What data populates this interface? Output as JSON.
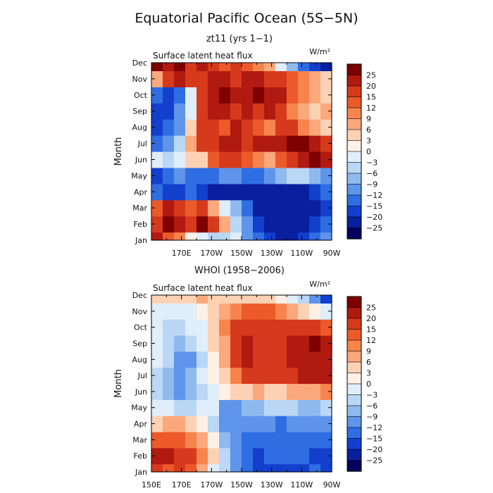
{
  "title": "Equatorial Pacific Ocean (5S−5N)",
  "chart_data": [
    {
      "type": "heatmap",
      "subtitle": "zt11 (yrs 1−1)",
      "panel_label": "Surface latent heat flux",
      "units": "W/m²",
      "ylabel": "Month",
      "xlabel": "",
      "x_ticks": [
        "170E",
        "170W",
        "150W",
        "130W",
        "110W",
        "90W"
      ],
      "y_ticks": [
        "Jan",
        "Feb",
        "Mar",
        "Apr",
        "May",
        "Jun",
        "Jul",
        "Aug",
        "Sep",
        "Oct",
        "Nov",
        "Dec"
      ],
      "x_range_lon": [
        150,
        270
      ],
      "colorbar_levels": [
        25,
        20,
        15,
        12,
        9,
        6,
        3,
        0,
        -3,
        -6,
        -9,
        -12,
        -15,
        -20,
        -25
      ],
      "grid": false,
      "values_rows_jan_to_dec_cols_150E_to_90W": [
        [
          20,
          12,
          10,
          2,
          -3,
          -6,
          -6,
          -3,
          -12,
          -15,
          -20,
          -25,
          -25,
          -20,
          -15,
          -12
        ],
        [
          15,
          25,
          20,
          15,
          25,
          15,
          6,
          -6,
          -12,
          -20,
          -25,
          -25,
          -25,
          -25,
          -20,
          -15
        ],
        [
          12,
          20,
          15,
          12,
          15,
          6,
          -3,
          -9,
          -15,
          -25,
          -25,
          -25,
          -25,
          -25,
          -25,
          -20
        ],
        [
          -15,
          -20,
          -20,
          -15,
          -20,
          -25,
          -25,
          -25,
          -25,
          -25,
          -25,
          -25,
          -25,
          -25,
          -20,
          -15
        ],
        [
          -20,
          -15,
          -12,
          -15,
          -15,
          -15,
          -12,
          -12,
          -15,
          -15,
          -12,
          -9,
          -6,
          -6,
          -9,
          -12
        ],
        [
          -3,
          -6,
          -3,
          3,
          3,
          12,
          15,
          15,
          12,
          9,
          6,
          12,
          15,
          20,
          25,
          20
        ],
        [
          -15,
          -12,
          -6,
          6,
          15,
          15,
          20,
          20,
          15,
          20,
          20,
          20,
          25,
          25,
          20,
          15
        ],
        [
          -20,
          -15,
          -12,
          3,
          15,
          15,
          12,
          20,
          15,
          12,
          9,
          15,
          15,
          9,
          6,
          3
        ],
        [
          -20,
          -20,
          -12,
          -3,
          15,
          20,
          20,
          15,
          20,
          15,
          20,
          15,
          9,
          6,
          3,
          6
        ],
        [
          -15,
          -20,
          -15,
          -3,
          15,
          20,
          25,
          20,
          20,
          25,
          20,
          20,
          12,
          9,
          6,
          3
        ],
        [
          6,
          15,
          20,
          15,
          15,
          20,
          20,
          15,
          20,
          20,
          15,
          15,
          12,
          9,
          6,
          3
        ],
        [
          25,
          20,
          25,
          15,
          20,
          15,
          12,
          15,
          12,
          9,
          6,
          -3,
          -9,
          -15,
          -20,
          -25
        ]
      ]
    },
    {
      "type": "heatmap",
      "subtitle": "WHOI (1958−2006)",
      "panel_label": "Surface latent heat flux",
      "units": "W/m²",
      "ylabel": "Month",
      "xlabel": "",
      "x_ticks": [
        "150E",
        "170E",
        "170W",
        "150W",
        "130W",
        "110W",
        "90W"
      ],
      "y_ticks": [
        "Jan",
        "Feb",
        "Mar",
        "Apr",
        "May",
        "Jun",
        "Jul",
        "Aug",
        "Sep",
        "Oct",
        "Nov",
        "Dec"
      ],
      "x_range_lon": [
        150,
        270
      ],
      "colorbar_levels": [
        25,
        20,
        15,
        12,
        9,
        6,
        3,
        0,
        -3,
        -6,
        -9,
        -12,
        -15,
        -20,
        -25
      ],
      "grid": false,
      "values_rows_jan_to_dec_cols_150E_to_90W": [
        [
          15,
          12,
          15,
          12,
          6,
          -3,
          -6,
          -12,
          -15,
          -20,
          -20,
          -20,
          -20,
          -20,
          -15,
          -20
        ],
        [
          20,
          20,
          15,
          15,
          9,
          3,
          -6,
          -12,
          -15,
          -20,
          -15,
          -15,
          -15,
          -15,
          -20,
          -20
        ],
        [
          12,
          12,
          12,
          9,
          6,
          0,
          -9,
          -12,
          -15,
          -15,
          -15,
          -15,
          -15,
          -15,
          -15,
          -15
        ],
        [
          3,
          6,
          6,
          3,
          0,
          -6,
          -12,
          -12,
          -12,
          -12,
          -12,
          -15,
          -12,
          -12,
          -12,
          -12
        ],
        [
          -3,
          -3,
          -6,
          -6,
          -3,
          -3,
          -12,
          -12,
          -9,
          -9,
          -6,
          -6,
          -6,
          -9,
          -9,
          -6
        ],
        [
          -6,
          -9,
          -12,
          -9,
          -6,
          -3,
          0,
          3,
          3,
          6,
          3,
          3,
          6,
          6,
          6,
          9
        ],
        [
          -6,
          -9,
          -12,
          -9,
          -3,
          0,
          3,
          9,
          15,
          15,
          15,
          15,
          15,
          20,
          20,
          20
        ],
        [
          -3,
          -6,
          -12,
          -12,
          -6,
          0,
          6,
          15,
          20,
          15,
          15,
          15,
          20,
          20,
          20,
          20
        ],
        [
          -3,
          -6,
          -9,
          -6,
          -3,
          3,
          6,
          15,
          20,
          15,
          15,
          15,
          20,
          20,
          25,
          20
        ],
        [
          -3,
          -6,
          -6,
          -3,
          -3,
          3,
          9,
          15,
          15,
          15,
          15,
          15,
          15,
          15,
          15,
          12
        ],
        [
          -3,
          -3,
          -3,
          -3,
          0,
          3,
          6,
          9,
          12,
          12,
          12,
          9,
          6,
          3,
          0,
          -3
        ],
        [
          3,
          3,
          3,
          3,
          6,
          3,
          3,
          3,
          3,
          3,
          3,
          0,
          -3,
          -6,
          -12,
          -20
        ]
      ]
    }
  ]
}
